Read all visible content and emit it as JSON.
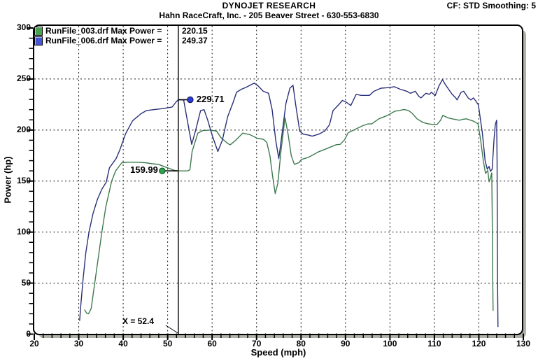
{
  "header": {
    "title": "DYNOJET RESEARCH",
    "subtitle": "Hahn RaceCraft, Inc. - 205 Beaver Street - 630-553-6830",
    "cf_smoothing": "CF: STD  Smoothing: 5"
  },
  "legend": {
    "entries": [
      {
        "name": "RunFile_003.drf Max Power =",
        "value": "220.15",
        "marker_color": "#49a152"
      },
      {
        "name": "RunFile_006.drf Max Power =",
        "value": "249.37",
        "marker_color": "#4754d6"
      }
    ]
  },
  "cursor": {
    "x": 52.4,
    "label": "X = 52.4",
    "readouts": [
      {
        "series": "RunFile_006.drf",
        "value": 229.71,
        "display": "229.71",
        "side": "right",
        "dot_fill": "#2b3bd6",
        "dot_stroke": "#12124f"
      },
      {
        "series": "RunFile_003.drf",
        "value": 159.99,
        "display": "159.99",
        "side": "left",
        "dot_fill": "#2ca24a",
        "dot_stroke": "#0c4a1e"
      }
    ]
  },
  "chart_data": {
    "type": "line",
    "title": "DYNOJET RESEARCH",
    "subtitle": "Hahn RaceCraft, Inc. - 205 Beaver Street - 630-553-6830",
    "xlabel": "Speed (mph)",
    "ylabel": "Power (hp)",
    "xlim": [
      20,
      130
    ],
    "ylim": [
      0,
      300
    ],
    "x_ticks": [
      20,
      30,
      40,
      50,
      60,
      70,
      80,
      90,
      100,
      110,
      120,
      130
    ],
    "y_ticks": [
      0,
      50,
      100,
      150,
      200,
      250,
      300
    ],
    "x_minor_step": 2,
    "y_minor_step": 10,
    "x_gridlines": [
      30,
      40,
      50,
      60,
      70,
      80,
      90,
      100,
      110,
      120
    ],
    "y_gridlines": [
      50,
      100,
      150,
      200,
      250
    ],
    "grid": true,
    "legend_position": "top-left",
    "series": [
      {
        "name": "RunFile_003.drf",
        "max_power": 220.15,
        "color": "#3e7b4f",
        "points": [
          [
            31.3,
            24
          ],
          [
            31.8,
            20.5
          ],
          [
            32.2,
            20
          ],
          [
            32.8,
            25
          ],
          [
            33.6,
            50
          ],
          [
            34.4,
            75
          ],
          [
            35.2,
            100
          ],
          [
            36.1,
            125
          ],
          [
            37.4,
            150
          ],
          [
            38.3,
            160
          ],
          [
            39.7,
            168
          ],
          [
            41,
            168.5
          ],
          [
            43,
            168.5
          ],
          [
            45,
            168
          ],
          [
            46.5,
            167
          ],
          [
            47.9,
            166.4
          ],
          [
            50,
            163
          ],
          [
            51.5,
            160.5
          ],
          [
            52.4,
            160
          ],
          [
            53.5,
            160
          ],
          [
            54.5,
            160
          ],
          [
            55,
            161
          ],
          [
            55.5,
            179
          ],
          [
            56.8,
            197
          ],
          [
            57.9,
            199.5
          ],
          [
            59.5,
            200
          ],
          [
            61,
            199
          ],
          [
            62,
            192.5
          ],
          [
            63.6,
            186.5
          ],
          [
            64.1,
            185.6
          ],
          [
            65.3,
            190
          ],
          [
            66.9,
            197
          ],
          [
            68.5,
            195.5
          ],
          [
            70.1,
            192
          ],
          [
            71.5,
            191
          ],
          [
            72.3,
            188
          ],
          [
            73,
            175
          ],
          [
            73.6,
            155
          ],
          [
            74.2,
            137.7
          ],
          [
            74.8,
            148
          ],
          [
            75.5,
            180
          ],
          [
            76.4,
            212
          ],
          [
            77.1,
            196
          ],
          [
            77.8,
            175
          ],
          [
            78.5,
            166.4
          ],
          [
            79.5,
            168
          ],
          [
            80.1,
            171.2
          ],
          [
            81.7,
            173.3
          ],
          [
            84,
            178.8
          ],
          [
            85.6,
            181.5
          ],
          [
            87.9,
            185.6
          ],
          [
            88.8,
            186
          ],
          [
            89.8,
            190.4
          ],
          [
            90.6,
            197.3
          ],
          [
            92.2,
            200.7
          ],
          [
            93.8,
            204.1
          ],
          [
            95,
            206
          ],
          [
            95.9,
            206
          ],
          [
            97.5,
            211
          ],
          [
            99.5,
            214.4
          ],
          [
            101.1,
            218.5
          ],
          [
            102.2,
            219.2
          ],
          [
            103.2,
            220.15
          ],
          [
            104.2,
            219
          ],
          [
            105,
            216.4
          ],
          [
            106.1,
            211
          ],
          [
            107.4,
            207.5
          ],
          [
            108.5,
            206.2
          ],
          [
            109.6,
            205.5
          ],
          [
            110.6,
            205.5
          ],
          [
            111.4,
            209.6
          ],
          [
            111.9,
            214.4
          ],
          [
            113,
            212
          ],
          [
            114,
            211
          ],
          [
            115.6,
            209.6
          ],
          [
            116.4,
            210.5
          ],
          [
            117.2,
            211
          ],
          [
            118.7,
            208.9
          ],
          [
            119.8,
            206.2
          ],
          [
            120.4,
            190.4
          ],
          [
            121,
            169.9
          ],
          [
            121.5,
            157.5
          ],
          [
            122,
            160.3
          ],
          [
            122.3,
            149.3
          ],
          [
            122.6,
            152.7
          ],
          [
            122.9,
            158
          ],
          [
            123,
            120
          ],
          [
            123.1,
            60
          ],
          [
            123.2,
            23
          ]
        ]
      },
      {
        "name": "RunFile_006.drf",
        "max_power": 249.37,
        "color": "#2a3078",
        "points": [
          [
            30.2,
            13
          ],
          [
            30.5,
            30
          ],
          [
            31,
            55
          ],
          [
            31.6,
            80
          ],
          [
            32.3,
            100
          ],
          [
            33.2,
            118
          ],
          [
            34.2,
            132
          ],
          [
            35.2,
            142
          ],
          [
            36.2,
            149
          ],
          [
            36.9,
            163
          ],
          [
            38.4,
            172
          ],
          [
            39.2,
            180
          ],
          [
            40.5,
            196
          ],
          [
            42.1,
            209
          ],
          [
            44,
            216
          ],
          [
            45.2,
            219
          ],
          [
            46.8,
            220
          ],
          [
            48.9,
            221
          ],
          [
            51,
            222.6
          ],
          [
            52,
            228
          ],
          [
            52.4,
            229.71
          ],
          [
            53.6,
            229.5
          ],
          [
            54.2,
            215
          ],
          [
            55.4,
            186
          ],
          [
            56.3,
            200
          ],
          [
            57.4,
            219
          ],
          [
            58.2,
            220
          ],
          [
            59,
            210
          ],
          [
            60,
            195
          ],
          [
            61.3,
            179
          ],
          [
            62.3,
            190
          ],
          [
            63.5,
            213
          ],
          [
            64.8,
            228
          ],
          [
            65.5,
            237
          ],
          [
            66.6,
            240
          ],
          [
            67.7,
            242
          ],
          [
            68.8,
            244.5
          ],
          [
            69.5,
            246
          ],
          [
            70.4,
            243
          ],
          [
            71.5,
            238
          ],
          [
            72.7,
            236
          ],
          [
            73.5,
            220
          ],
          [
            74.3,
            190
          ],
          [
            75,
            172
          ],
          [
            75.7,
            195
          ],
          [
            76.6,
            226
          ],
          [
            77.5,
            241
          ],
          [
            78.2,
            244
          ],
          [
            78.8,
            225
          ],
          [
            79.7,
            199
          ],
          [
            80.5,
            196
          ],
          [
            81.7,
            195
          ],
          [
            82.5,
            194
          ],
          [
            84,
            196
          ],
          [
            85.3,
            199
          ],
          [
            86.4,
            205
          ],
          [
            87.2,
            219
          ],
          [
            88.5,
            225
          ],
          [
            89.3,
            229
          ],
          [
            90.3,
            227
          ],
          [
            91.2,
            224
          ],
          [
            92.4,
            235
          ],
          [
            93.5,
            234
          ],
          [
            95.4,
            234
          ],
          [
            96.4,
            238
          ],
          [
            98,
            241
          ],
          [
            99.5,
            241.5
          ],
          [
            101,
            242.5
          ],
          [
            102.3,
            240
          ],
          [
            103.8,
            238
          ],
          [
            104.6,
            236
          ],
          [
            105.7,
            238
          ],
          [
            106.5,
            233
          ],
          [
            107,
            231.5
          ],
          [
            108.1,
            236
          ],
          [
            108.9,
            235
          ],
          [
            109.3,
            237
          ],
          [
            110.2,
            234
          ],
          [
            111,
            243
          ],
          [
            111.8,
            249.37
          ],
          [
            112.4,
            245
          ],
          [
            113.2,
            240
          ],
          [
            114,
            235
          ],
          [
            114.8,
            231.5
          ],
          [
            115.1,
            229.5
          ],
          [
            116,
            237
          ],
          [
            116.6,
            238
          ],
          [
            117.6,
            231.5
          ],
          [
            118.2,
            229.5
          ],
          [
            118.8,
            231.5
          ],
          [
            119.4,
            228
          ],
          [
            119.9,
            224.6
          ],
          [
            120.8,
            197
          ],
          [
            121.4,
            170
          ],
          [
            121.9,
            161.6
          ],
          [
            122.3,
            164.4
          ],
          [
            122.6,
            159.6
          ],
          [
            123,
            161.6
          ],
          [
            123.4,
            190.4
          ],
          [
            123.7,
            205.5
          ],
          [
            124,
            209.6
          ],
          [
            124.1,
            170
          ],
          [
            124.2,
            60
          ],
          [
            124.3,
            7
          ]
        ]
      }
    ]
  }
}
